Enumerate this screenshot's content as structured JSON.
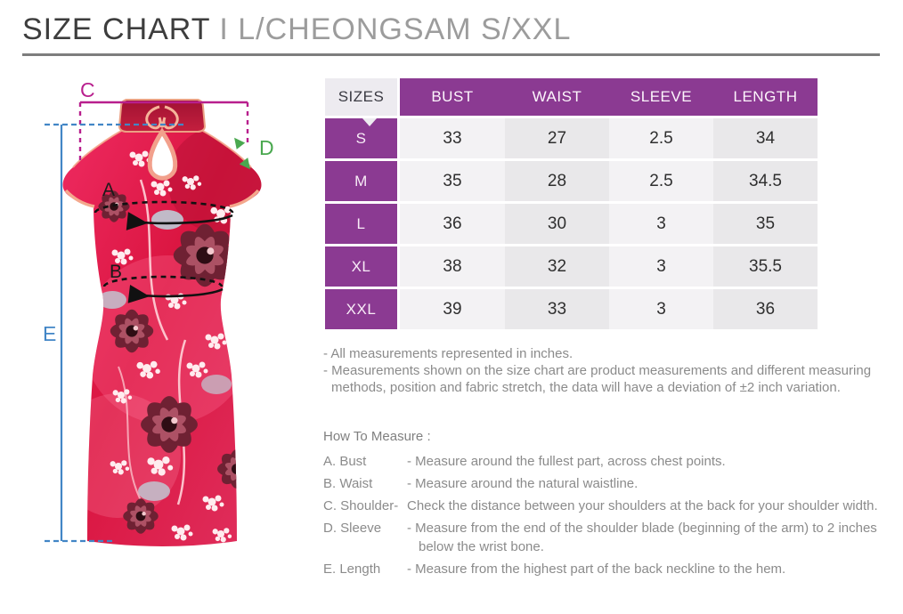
{
  "title": {
    "primary": "SIZE CHART",
    "divider": "I",
    "secondary": "L/CHEONGSAM S/XXL"
  },
  "size_table": {
    "columns": [
      "SIZES",
      "BUST",
      "WAIST",
      "SLEEVE",
      "LENGTH"
    ],
    "rows": [
      {
        "size": "S",
        "values": [
          "33",
          "27",
          "2.5",
          "34"
        ]
      },
      {
        "size": "M",
        "values": [
          "35",
          "28",
          "2.5",
          "34.5"
        ]
      },
      {
        "size": "L",
        "values": [
          "36",
          "30",
          "3",
          "35"
        ]
      },
      {
        "size": "XL",
        "values": [
          "38",
          "32",
          "3",
          "35.5"
        ]
      },
      {
        "size": "XXL",
        "values": [
          "39",
          "33",
          "3",
          "36"
        ]
      }
    ]
  },
  "notes": [
    "- All measurements represented in inches.",
    "- Measurements shown on the size chart are product measurements and different measuring methods, position and fabric stretch, the data will have a deviation of ±2 inch variation."
  ],
  "how_to_measure": {
    "heading": "How To Measure :",
    "items": [
      {
        "label": "A. Bust",
        "desc": "- Measure around the fullest part, across chest points."
      },
      {
        "label": "B. Waist",
        "desc": "- Measure around the natural waistline."
      },
      {
        "label": "C. Shoulder-",
        "desc": "Check the distance between your shoulders at the back for your shoulder width."
      },
      {
        "label": "D. Sleeve",
        "desc": "- Measure from the end of the shoulder blade (beginning of the arm) to 2 inches below the wrist bone."
      },
      {
        "label": "E. Length",
        "desc": "- Measure from the highest part of the back neckline to the hem."
      }
    ]
  },
  "diagram": {
    "labels": {
      "bust": "A",
      "waist": "B",
      "shoulder": "C",
      "sleeve": "D",
      "length": "E"
    }
  },
  "colors": {
    "table_purple": "#8b3a92",
    "shoulder_magenta": "#b81f8d",
    "length_blue": "#4286c6",
    "sleeve_green": "#4aa84f",
    "annotation_black": "#1a1a1a"
  }
}
